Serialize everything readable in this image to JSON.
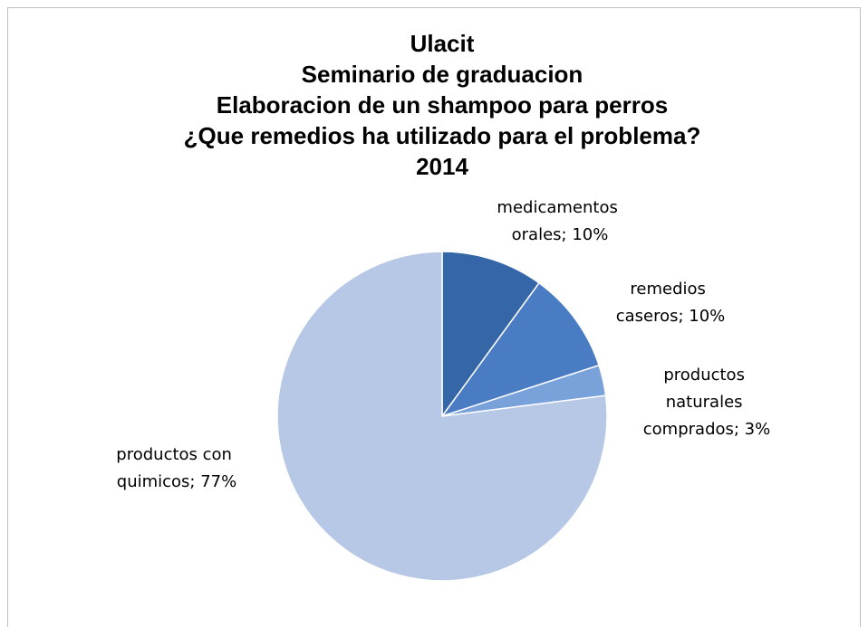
{
  "chart_data": {
    "type": "pie",
    "title": [
      "Ulacit",
      "Seminario de graduacion",
      "Elaboracion de un shampoo para perros",
      "¿Que remedios ha utilizado para el problema?",
      "2014"
    ],
    "values": [
      10,
      10,
      3,
      77
    ],
    "value_labels": [
      "medicamentos orales; 10%",
      "remedios caseros; 10%",
      "productos naturales comprados; 3%",
      "productos con quimicos; 77%"
    ],
    "colors": [
      "#3566a8",
      "#4a7cc4",
      "#7aa2da",
      "#b6c8e6"
    ]
  }
}
